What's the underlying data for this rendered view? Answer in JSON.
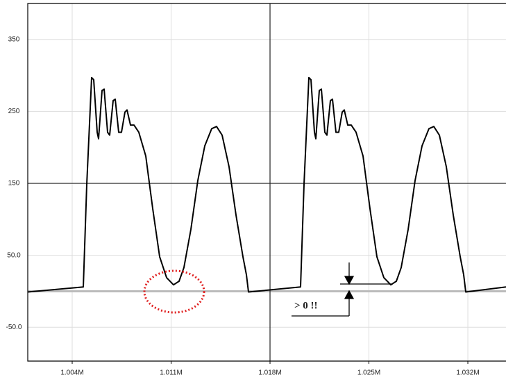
{
  "chart_data": {
    "type": "line",
    "x": [
      1000856,
      1004786,
      1005032,
      1005375,
      1005523,
      1005768,
      1005867,
      1006112,
      1006260,
      1006505,
      1006652,
      1006898,
      1007045,
      1007291,
      1007488,
      1007733,
      1007880,
      1008126,
      1008372,
      1008715,
      1009207,
      1009698,
      1010189,
      1010680,
      1011172,
      1011564,
      1011908,
      1012400,
      1012891,
      1013382,
      1013873,
      1014217,
      1014610,
      1015101,
      1015592,
      1016084,
      1016329,
      1016477,
      1020161,
      1020407,
      1020750,
      1020898,
      1021143,
      1021242,
      1021487,
      1021635,
      1021880,
      1022027,
      1022273,
      1022420,
      1022666,
      1022863,
      1023108,
      1023255,
      1023501,
      1023747,
      1024090,
      1024582,
      1025073,
      1025564,
      1026055,
      1026547,
      1026939,
      1027283,
      1027775,
      1028266,
      1028757,
      1029248,
      1029592,
      1029985,
      1030476,
      1030967,
      1031459,
      1031704,
      1031852,
      1034700
    ],
    "series": [
      {
        "color": "#000000",
        "values": [
          -1,
          6,
          149,
          297,
          294,
          221,
          212,
          279,
          281,
          221,
          217,
          265,
          267,
          221,
          221,
          249,
          252,
          231,
          231,
          221,
          188,
          115,
          48,
          19,
          9,
          14,
          33,
          86,
          154,
          202,
          226,
          229,
          217,
          173,
          106,
          48,
          23,
          -1,
          6,
          149,
          297,
          294,
          221,
          212,
          279,
          281,
          221,
          217,
          265,
          267,
          221,
          221,
          249,
          252,
          231,
          231,
          221,
          188,
          115,
          48,
          19,
          9,
          14,
          33,
          86,
          154,
          202,
          226,
          229,
          217,
          173,
          106,
          48,
          23,
          -1,
          6
        ]
      }
    ],
    "xlim": [
      1000856,
      1034700
    ],
    "ylim": [
      -97,
      400
    ],
    "xticks": [
      {
        "value": 1004000,
        "label": "1.004M"
      },
      {
        "value": 1011000,
        "label": "1.011M"
      },
      {
        "value": 1018000,
        "label": "1.018M"
      },
      {
        "value": 1025000,
        "label": "1.025M"
      },
      {
        "value": 1032000,
        "label": "1.032M"
      }
    ],
    "yticks": [
      {
        "value": -50,
        "label": "-50.0"
      },
      {
        "value": 50,
        "label": "50.0"
      },
      150,
      250,
      350
    ],
    "grid": true,
    "zero_line": 0,
    "cursor": {
      "x": 1018000,
      "y": 150
    },
    "annotation": "> 0 !!"
  }
}
